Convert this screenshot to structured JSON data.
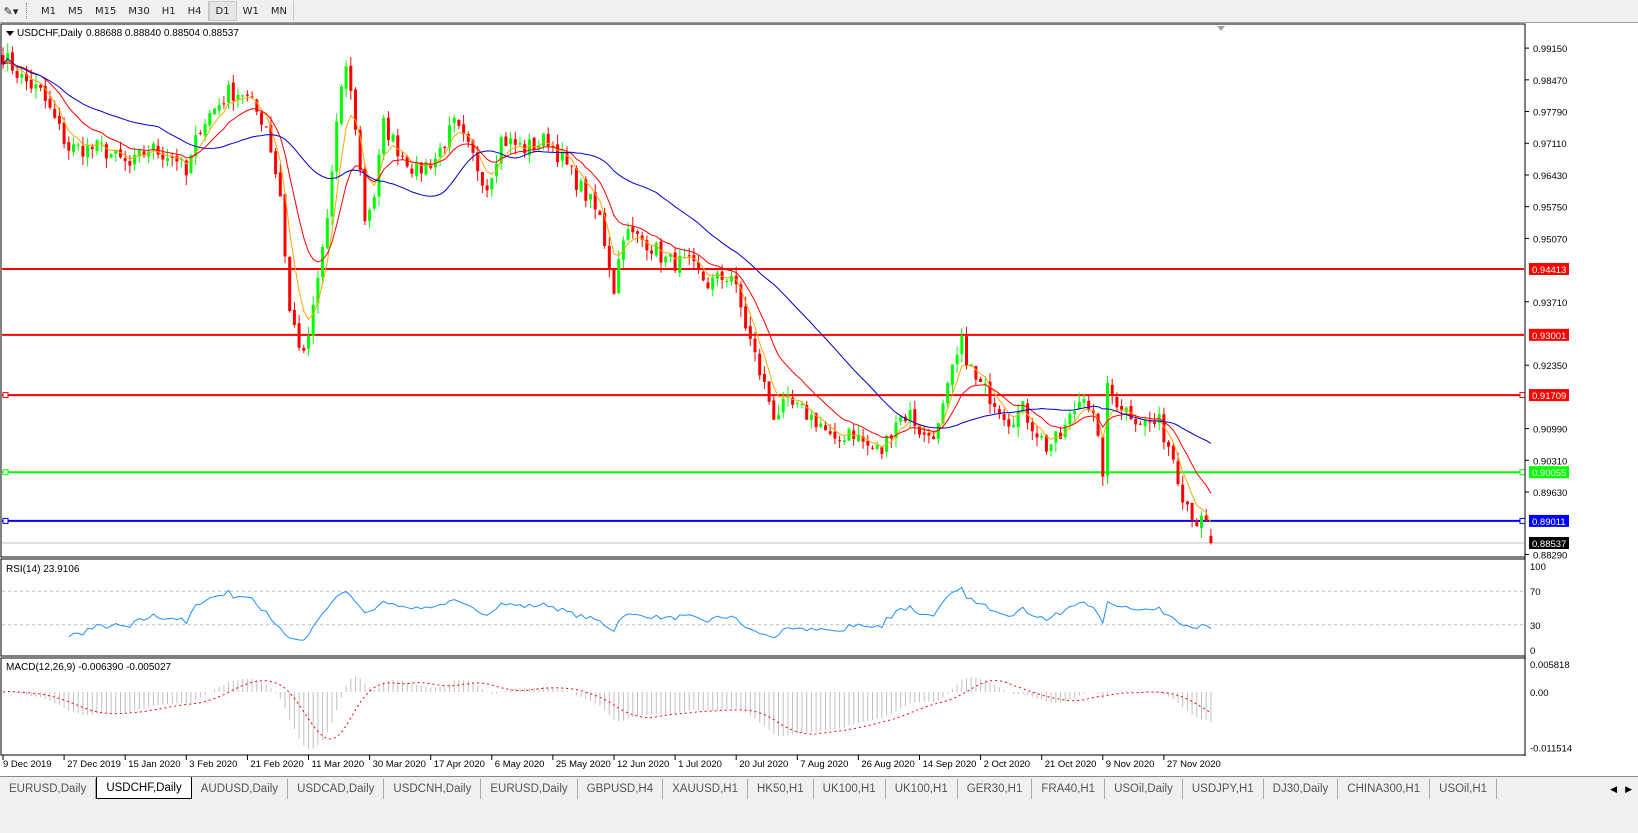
{
  "toolbar": {
    "tool_icon": "line-tool-icon",
    "timeframes": [
      "M1",
      "M5",
      "M15",
      "M30",
      "H1",
      "H4",
      "D1",
      "W1",
      "MN"
    ],
    "active_timeframe": "D1"
  },
  "chart": {
    "header": "USDCHF,Daily",
    "ohlc_text": "0.88688 0.88840 0.88504 0.88537",
    "last_candle": {
      "open": 0.88688,
      "high": 0.8884,
      "low": 0.88504,
      "close": 0.88537
    },
    "current_price": "0.88537",
    "colors": {
      "bull": "#00ff00",
      "bear": "#ff0000",
      "ma_fast": "#ffa500",
      "ma_mid": "#ff0000",
      "ma_slow": "#0000cd",
      "rsi": "#1e90ff",
      "macd_hist": "#c0c0c0",
      "macd_signal": "#ff0000"
    },
    "price_axis": [
      "0.99150",
      "0.98470",
      "0.97790",
      "0.97110",
      "0.96430",
      "0.95750",
      "0.95070",
      "0.93710",
      "0.92350",
      "0.90990",
      "0.90310",
      "0.89630",
      "0.88290"
    ],
    "hlines": [
      {
        "price": 0.94413,
        "label": "0.94413",
        "color": "#ff0000"
      },
      {
        "price": 0.93001,
        "label": "0.93001",
        "color": "#ff0000"
      },
      {
        "price": 0.91709,
        "label": "0.91709",
        "color": "#ff0000"
      },
      {
        "price": 0.90055,
        "label": "0.90055",
        "color": "#00ff00"
      },
      {
        "price": 0.89011,
        "label": "0.89011",
        "color": "#0000ff"
      }
    ],
    "close_path": [
      [
        0,
        0.99
      ],
      [
        4,
        0.985
      ],
      [
        8,
        0.982
      ],
      [
        14,
        0.97
      ],
      [
        21,
        0.97
      ],
      [
        27,
        0.966
      ],
      [
        31,
        0.97
      ],
      [
        37,
        0.968
      ],
      [
        39,
        0.964
      ],
      [
        42,
        0.975
      ],
      [
        48,
        0.982
      ],
      [
        51,
        0.982
      ],
      [
        56,
        0.975
      ],
      [
        59,
        0.96
      ],
      [
        61,
        0.935
      ],
      [
        64,
        0.925
      ],
      [
        66,
        0.935
      ],
      [
        69,
        0.955
      ],
      [
        71,
        0.975
      ],
      [
        73,
        0.988
      ],
      [
        75,
        0.975
      ],
      [
        77,
        0.955
      ],
      [
        79,
        0.96
      ],
      [
        81,
        0.975
      ],
      [
        84,
        0.97
      ],
      [
        88,
        0.965
      ],
      [
        92,
        0.968
      ],
      [
        96,
        0.975
      ],
      [
        100,
        0.968
      ],
      [
        103,
        0.962
      ],
      [
        106,
        0.972
      ],
      [
        111,
        0.97
      ],
      [
        116,
        0.972
      ],
      [
        120,
        0.966
      ],
      [
        124,
        0.96
      ],
      [
        127,
        0.955
      ],
      [
        130,
        0.94
      ],
      [
        132,
        0.952
      ],
      [
        137,
        0.95
      ],
      [
        141,
        0.946
      ],
      [
        146,
        0.945
      ],
      [
        150,
        0.941
      ],
      [
        155,
        0.943
      ],
      [
        158,
        0.932
      ],
      [
        161,
        0.922
      ],
      [
        164,
        0.913
      ],
      [
        167,
        0.915
      ],
      [
        171,
        0.913
      ],
      [
        174,
        0.911
      ],
      [
        177,
        0.906
      ],
      [
        180,
        0.91
      ],
      [
        184,
        0.906
      ],
      [
        187,
        0.905
      ],
      [
        190,
        0.912
      ],
      [
        193,
        0.913
      ],
      [
        196,
        0.908
      ],
      [
        199,
        0.91
      ],
      [
        202,
        0.922
      ],
      [
        204,
        0.928
      ],
      [
        207,
        0.92
      ],
      [
        211,
        0.916
      ],
      [
        214,
        0.912
      ],
      [
        217,
        0.914
      ],
      [
        222,
        0.906
      ],
      [
        225,
        0.908
      ],
      [
        227,
        0.912
      ],
      [
        230,
        0.918
      ],
      [
        232,
        0.912
      ],
      [
        234,
        0.901
      ],
      [
        235,
        0.918
      ],
      [
        239,
        0.914
      ],
      [
        243,
        0.911
      ],
      [
        246,
        0.911
      ],
      [
        249,
        0.904
      ],
      [
        251,
        0.896
      ],
      [
        254,
        0.89
      ],
      [
        256,
        0.889
      ],
      [
        257,
        0.88537
      ]
    ],
    "dates": [
      "9 Dec 2019",
      "27 Dec 2019",
      "15 Jan 2020",
      "3 Feb 2020",
      "21 Feb 2020",
      "11 Mar 2020",
      "30 Mar 2020",
      "17 Apr 2020",
      "6 May 2020",
      "25 May 2020",
      "12 Jun 2020",
      "1 Jul 2020",
      "20 Jul 2020",
      "7 Aug 2020",
      "26 Aug 2020",
      "14 Sep 2020",
      "2 Oct 2020",
      "21 Oct 2020",
      "9 Nov 2020",
      "27 Nov 2020"
    ]
  },
  "rsi": {
    "label": "RSI(14) 23.9106",
    "axis": [
      "100",
      "70",
      "30",
      "0"
    ]
  },
  "macd": {
    "label": "MACD(12,26,9) -0.006390 -0.005027",
    "axis": [
      "0.005818",
      "0.00",
      "-0.011514"
    ]
  },
  "tabs": [
    {
      "label": "EURUSD,Daily"
    },
    {
      "label": "USDCHF,Daily",
      "active": true
    },
    {
      "label": "AUDUSD,Daily"
    },
    {
      "label": "USDCAD,Daily"
    },
    {
      "label": "USDCNH,Daily"
    },
    {
      "label": "EURUSD,Daily"
    },
    {
      "label": "GBPUSD,H4"
    },
    {
      "label": "XAUUSD,H1"
    },
    {
      "label": "HK50,H1"
    },
    {
      "label": "UK100,H1"
    },
    {
      "label": "UK100,H1"
    },
    {
      "label": "GER30,H1"
    },
    {
      "label": "FRA40,H1"
    },
    {
      "label": "USOil,Daily"
    },
    {
      "label": "USDJPY,H1"
    },
    {
      "label": "DJ30,Daily"
    },
    {
      "label": "CHINA300,H1"
    },
    {
      "label": "USOil,H1"
    }
  ]
}
